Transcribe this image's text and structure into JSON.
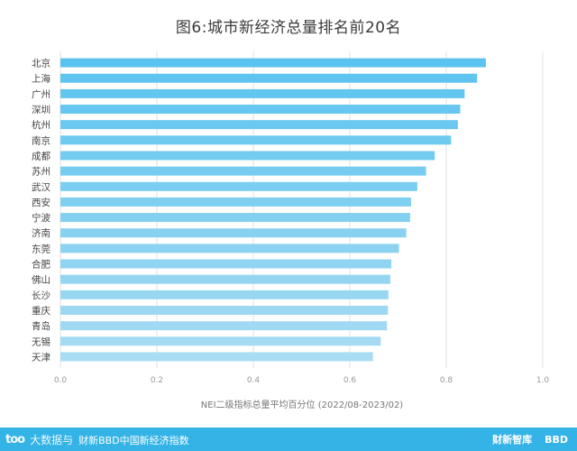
{
  "chart_data": {
    "type": "bar",
    "orientation": "horizontal",
    "title": "图6:城市新经济总量排名前20名",
    "xlabel": "NEI二级指标总量平均百分位 (2022/08-2023/02)",
    "ylabel": "",
    "xlim": [
      0,
      1.0
    ],
    "xticks": [
      "0.0",
      "0.2",
      "0.4",
      "0.6",
      "0.8",
      "1.0"
    ],
    "grid": true,
    "categories": [
      "北京",
      "上海",
      "广州",
      "深圳",
      "杭州",
      "南京",
      "成都",
      "苏州",
      "武汉",
      "西安",
      "宁波",
      "济南",
      "东莞",
      "合肥",
      "佛山",
      "长沙",
      "重庆",
      "青岛",
      "无锡",
      "天津"
    ],
    "values": [
      0.882,
      0.864,
      0.838,
      0.829,
      0.824,
      0.81,
      0.776,
      0.758,
      0.74,
      0.727,
      0.725,
      0.717,
      0.702,
      0.686,
      0.684,
      0.68,
      0.679,
      0.677,
      0.664,
      0.648
    ],
    "colors": [
      "#5bc3ef",
      "#a8dcf3"
    ]
  },
  "footer": {
    "logo": "too",
    "brand": "大数据与",
    "source": "财新BBD中国新经济指数",
    "right_logos": [
      "财新智库",
      "BBD"
    ]
  }
}
